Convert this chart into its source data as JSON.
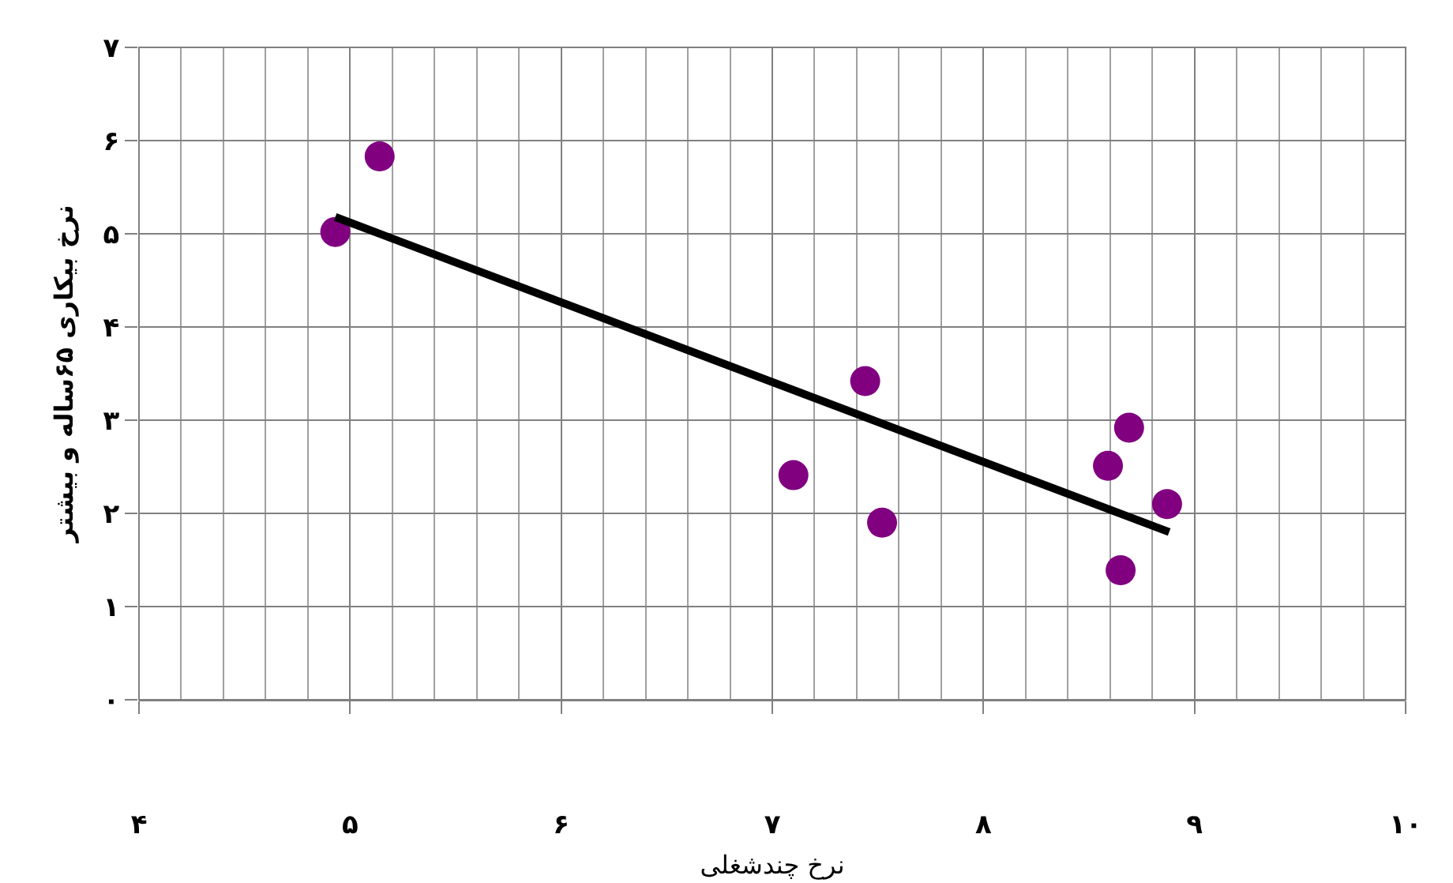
{
  "chart_data": {
    "type": "scatter",
    "xlabel": "نرخ چندشغلی",
    "ylabel": "نرخ بیکاری ۶۵ساله و بیشتر",
    "series": [
      {
        "color": "#800080",
        "marker": "circle",
        "x": [
          4.93,
          5.14,
          7.1,
          7.44,
          7.52,
          8.59,
          8.69,
          8.65,
          8.87
        ],
        "values": [
          5.02,
          5.83,
          2.41,
          3.42,
          1.9,
          2.51,
          2.92,
          1.39,
          2.1
        ]
      },
      {
        "type": "line",
        "color": "#000000",
        "marker": "none",
        "line_style": "solid",
        "x": [
          4.93,
          8.88
        ],
        "values": [
          5.18,
          1.8
        ]
      }
    ],
    "xlim": [
      4,
      10
    ],
    "ylim": [
      0,
      7
    ],
    "xticks": [
      {
        "value": 4,
        "label": "۴"
      },
      {
        "value": 5,
        "label": "۵"
      },
      {
        "value": 6,
        "label": "۶"
      },
      {
        "value": 7,
        "label": "۷"
      },
      {
        "value": 8,
        "label": "۸"
      },
      {
        "value": 9,
        "label": "۹"
      },
      {
        "value": 10,
        "label": "۱۰"
      }
    ],
    "yticks": [
      {
        "value": 0,
        "label": "۰"
      },
      {
        "value": 1,
        "label": "۱"
      },
      {
        "value": 2,
        "label": "۲"
      },
      {
        "value": 3,
        "label": "۳"
      },
      {
        "value": 4,
        "label": "۴"
      },
      {
        "value": 5,
        "label": "۵"
      },
      {
        "value": 6,
        "label": "۶"
      },
      {
        "value": 7,
        "label": "۷"
      }
    ],
    "grid": true
  }
}
